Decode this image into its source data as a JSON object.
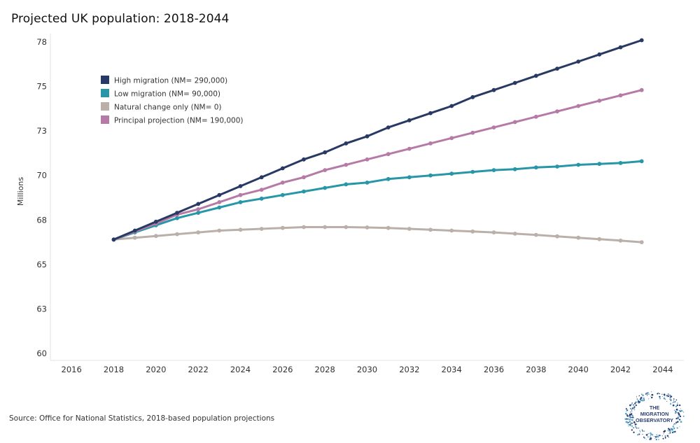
{
  "title": "Projected UK population: 2018-2044",
  "source": "Source: Office for National Statistics, 2018-based population projections",
  "logo": {
    "lines": [
      "THE",
      "MIGRATION",
      "OBSERVATORY"
    ]
  },
  "chart_data": {
    "type": "line",
    "title": "Projected UK population: 2018-2044",
    "ylabel": "Millions",
    "xlabel": "",
    "xlim": [
      2015,
      2045
    ],
    "ylim": [
      60,
      78
    ],
    "xticks": [
      2016,
      2018,
      2020,
      2022,
      2024,
      2026,
      2028,
      2030,
      2032,
      2034,
      2036,
      2038,
      2040,
      2042,
      2044
    ],
    "yticks": [
      {
        "value": 60,
        "label": "60"
      },
      {
        "value": 62.5,
        "label": "63"
      },
      {
        "value": 65,
        "label": "65"
      },
      {
        "value": 67.5,
        "label": "68"
      },
      {
        "value": 70,
        "label": "70"
      },
      {
        "value": 72.5,
        "label": "73"
      },
      {
        "value": 75,
        "label": "75"
      },
      {
        "value": 77.5,
        "label": "78"
      }
    ],
    "grid": false,
    "legend_position": "top-left",
    "x": [
      2018,
      2019,
      2020,
      2021,
      2022,
      2023,
      2024,
      2025,
      2026,
      2027,
      2028,
      2029,
      2030,
      2031,
      2032,
      2033,
      2034,
      2035,
      2036,
      2037,
      2038,
      2039,
      2040,
      2041,
      2042,
      2043
    ],
    "series": [
      {
        "name": "High migration (NM= 290,000)",
        "color": "#283a63",
        "values": [
          66.4,
          66.9,
          67.4,
          67.9,
          68.4,
          68.9,
          69.4,
          69.9,
          70.4,
          70.9,
          71.3,
          71.8,
          72.2,
          72.7,
          73.1,
          73.5,
          73.9,
          74.4,
          74.8,
          75.2,
          75.6,
          76.0,
          76.4,
          76.8,
          77.2,
          77.6
        ]
      },
      {
        "name": "Low migration (NM= 90,000)",
        "color": "#2797a8",
        "values": [
          66.4,
          66.8,
          67.2,
          67.6,
          67.9,
          68.2,
          68.5,
          68.7,
          68.9,
          69.1,
          69.3,
          69.5,
          69.6,
          69.8,
          69.9,
          70.0,
          70.1,
          70.2,
          70.3,
          70.35,
          70.45,
          70.5,
          70.6,
          70.65,
          70.7,
          70.8
        ]
      },
      {
        "name": "Natural change only (NM= 0)",
        "color": "#bab0a9",
        "values": [
          66.4,
          66.5,
          66.6,
          66.7,
          66.8,
          66.9,
          66.95,
          67.0,
          67.05,
          67.1,
          67.1,
          67.1,
          67.08,
          67.05,
          67.0,
          66.95,
          66.9,
          66.85,
          66.8,
          66.73,
          66.66,
          66.58,
          66.5,
          66.42,
          66.34,
          66.25
        ]
      },
      {
        "name": "Principal projection (NM= 190,000)",
        "color": "#b57ba6",
        "values": [
          66.4,
          66.85,
          67.3,
          67.8,
          68.1,
          68.5,
          68.9,
          69.2,
          69.6,
          69.9,
          70.3,
          70.6,
          70.9,
          71.2,
          71.5,
          71.8,
          72.1,
          72.4,
          72.7,
          73.0,
          73.3,
          73.6,
          73.9,
          74.2,
          74.5,
          74.8
        ]
      }
    ]
  }
}
